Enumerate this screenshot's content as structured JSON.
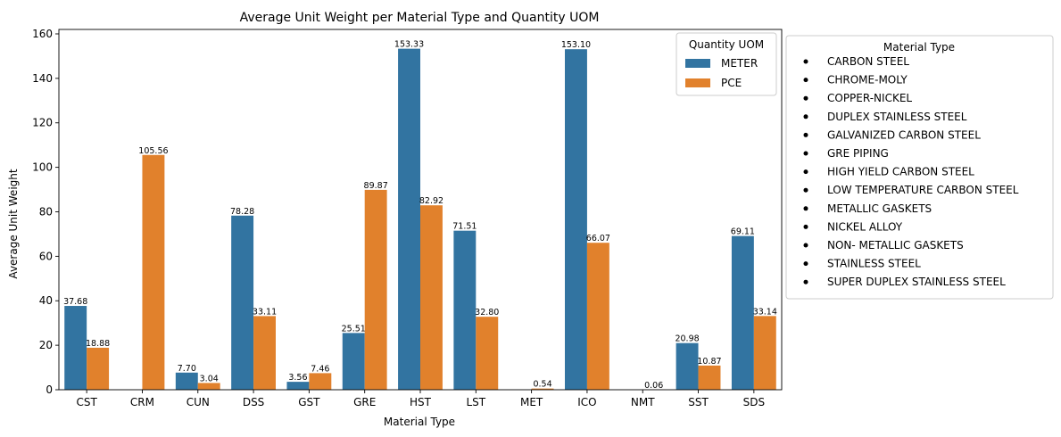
{
  "chart_data": {
    "type": "bar",
    "title": "Average Unit Weight per Material Type and Quantity UOM",
    "xlabel": "Material Type",
    "ylabel": "Average Unit Weight",
    "ylim": [
      0,
      162
    ],
    "yticks": [
      0,
      20,
      40,
      60,
      80,
      100,
      120,
      140,
      160
    ],
    "categories": [
      "CST",
      "CRM",
      "CUN",
      "DSS",
      "GST",
      "GRE",
      "HST",
      "LST",
      "MET",
      "ICO",
      "NMT",
      "SST",
      "SDS"
    ],
    "series": [
      {
        "name": "METER",
        "color": "#3274a1",
        "values": [
          37.68,
          null,
          7.7,
          78.28,
          3.56,
          25.51,
          153.33,
          71.51,
          null,
          153.1,
          null,
          20.98,
          69.11
        ],
        "labels": [
          "37.68",
          "",
          "7.70",
          "78.28",
          "3.56",
          "25.51",
          "153.33",
          "71.51",
          "",
          "153.10",
          "",
          "20.98",
          "69.11"
        ]
      },
      {
        "name": "PCE",
        "color": "#e1812c",
        "values": [
          18.88,
          105.56,
          3.04,
          33.11,
          7.46,
          89.87,
          82.92,
          32.8,
          0.54,
          66.07,
          0.06,
          10.87,
          33.14
        ],
        "labels": [
          "18.88",
          "105.56",
          "3.04",
          "33.11",
          "7.46",
          "89.87",
          "82.92",
          "32.80",
          "0.54",
          "66.07",
          "0.06",
          "10.87",
          "33.14"
        ]
      }
    ],
    "legend": {
      "title": "Quantity UOM",
      "placement": "top-right",
      "entries": [
        "METER",
        "PCE"
      ]
    },
    "material_legend": {
      "title": "Material Type",
      "placement": "outside-right",
      "entries": [
        "CARBON STEEL",
        "CHROME-MOLY",
        "COPPER-NICKEL",
        "DUPLEX STAINLESS STEEL",
        "GALVANIZED CARBON STEEL",
        "GRE PIPING",
        "HIGH YIELD CARBON STEEL",
        "LOW TEMPERATURE CARBON STEEL",
        "METALLIC GASKETS",
        "NICKEL ALLOY",
        "NON- METALLIC GASKETS",
        "STAINLESS STEEL",
        "SUPER DUPLEX STAINLESS STEEL"
      ]
    },
    "grid": false
  }
}
